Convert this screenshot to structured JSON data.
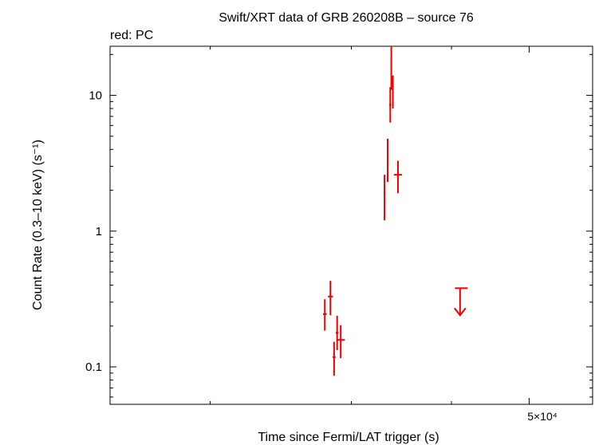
{
  "chart_data": {
    "type": "scatter",
    "title": "Swift/XRT data of GRB 260208B – source 76",
    "subtitle": "red: PC",
    "xlabel": "Time since Fermi/LAT trigger (s)",
    "ylabel": "Count Rate (0.3–10 keV) (s⁻¹)",
    "x_scale": "log",
    "y_scale": "log",
    "xlim": [
      15000,
      60000
    ],
    "ylim": [
      0.053,
      23
    ],
    "x_tick_label": "5×10⁴",
    "y_ticks": [
      {
        "value": 0.1,
        "label": "0.1"
      },
      {
        "value": 1,
        "label": "1"
      },
      {
        "value": 10,
        "label": "10"
      }
    ],
    "grid": false,
    "series_color": "#ee0000",
    "series": [
      {
        "name": "PC",
        "points": [
          {
            "x": 27800,
            "xerr": [
              150,
              150
            ],
            "y": 0.245,
            "yerr": [
              0.06,
              0.07
            ]
          },
          {
            "x": 28250,
            "xerr": [
              200,
              200
            ],
            "y": 0.33,
            "yerr": [
              0.09,
              0.1
            ]
          },
          {
            "x": 28550,
            "xerr": [
              120,
              120
            ],
            "y": 0.118,
            "yerr": [
              0.032,
              0.035
            ]
          },
          {
            "x": 28800,
            "xerr": [
              120,
              120
            ],
            "y": 0.178,
            "yerr": [
              0.045,
              0.06
            ]
          },
          {
            "x": 29100,
            "xerr": [
              350,
              350
            ],
            "y": 0.158,
            "yerr": [
              0.042,
              0.045
            ]
          },
          {
            "x": 33000,
            "xerr": [
              80,
              80
            ],
            "y": 1.9,
            "yerr": [
              0.7,
              0.7
            ]
          },
          {
            "x": 33300,
            "xerr": [
              80,
              80
            ],
            "y": 3.5,
            "yerr": [
              1.2,
              1.3
            ]
          },
          {
            "x": 33550,
            "xerr": [
              100,
              100
            ],
            "y": 8.5,
            "yerr": [
              2.2,
              3.0
            ]
          },
          {
            "x": 33650,
            "xerr": [
              60,
              60
            ],
            "y": 17,
            "yerr": [
              6.0,
              6.0
            ]
          },
          {
            "x": 33800,
            "xerr": [
              60,
              60
            ],
            "y": 11,
            "yerr": [
              3.0,
              3.0
            ]
          },
          {
            "x": 34300,
            "xerr": [
              400,
              400
            ],
            "y": 2.6,
            "yerr": [
              0.7,
              0.7
            ]
          }
        ]
      }
    ],
    "upper_limits": [
      {
        "x": 41000,
        "xerr": [
          600,
          900
        ],
        "y": 0.38
      }
    ]
  }
}
